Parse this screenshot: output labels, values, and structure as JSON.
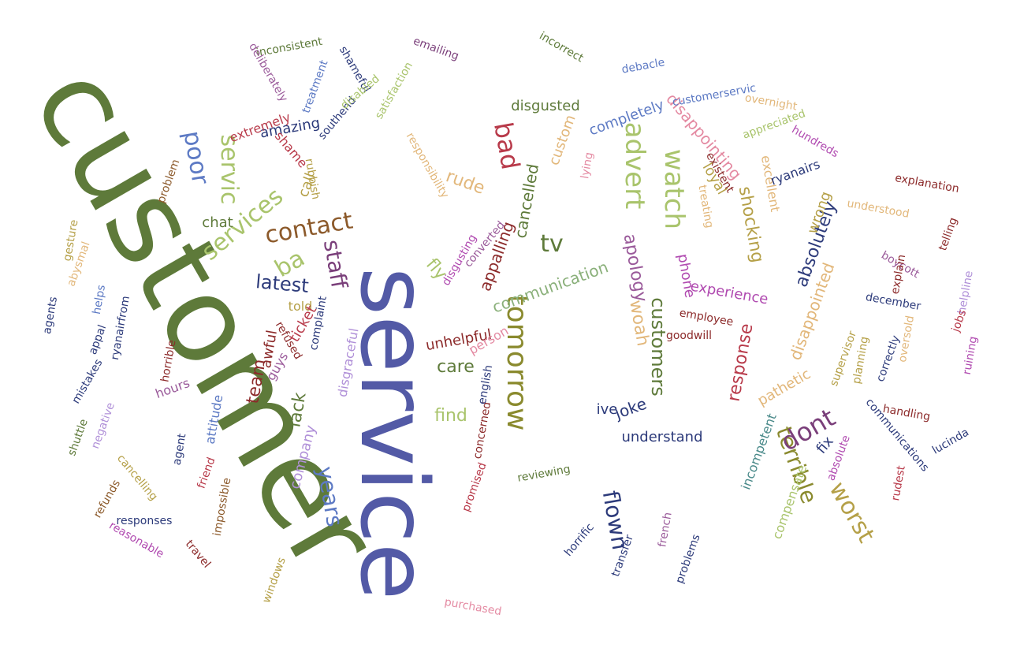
{
  "palette": {
    "green": "#5e7a3a",
    "indigo": "#535aa6",
    "olive": "#8a8a2e",
    "lime": "#a9c46c",
    "khaki": "#b5a048",
    "tan": "#e2b77a",
    "brown": "#8c5a2b",
    "maroon": "#8c2a2a",
    "crimson": "#b83a4a",
    "pink": "#d65a80",
    "rose": "#e48aa2",
    "magenta": "#b04ab0",
    "lavender": "#b090d8",
    "purple": "#7a3f7a",
    "plum": "#9a5a9a",
    "blue": "#5d7ac4",
    "navy": "#2c3a7a",
    "teal": "#4a8a8a",
    "sage": "#8ab07a"
  },
  "words": [
    {
      "text": "customer",
      "color": "green"
    },
    {
      "text": "service",
      "color": "indigo"
    },
    {
      "text": "terrible",
      "color": "olive"
    },
    {
      "text": "worst",
      "color": "khaki"
    },
    {
      "text": "tomorrow",
      "color": "olive"
    },
    {
      "text": "advert",
      "color": "lime"
    },
    {
      "text": "watch",
      "color": "lime"
    },
    {
      "text": "bad",
      "color": "crimson"
    },
    {
      "text": "staff",
      "color": "purple"
    },
    {
      "text": "contact",
      "color": "brown"
    },
    {
      "text": "services",
      "color": "lime"
    },
    {
      "text": "servic",
      "color": "lime"
    },
    {
      "text": "poor",
      "color": "blue"
    },
    {
      "text": "ba",
      "color": "lime"
    },
    {
      "text": "latest",
      "color": "navy"
    },
    {
      "text": "dont",
      "color": "purple"
    },
    {
      "text": "customers",
      "color": "green"
    },
    {
      "text": "flown",
      "color": "navy"
    },
    {
      "text": "years",
      "color": "blue"
    },
    {
      "text": "tv",
      "color": "green"
    },
    {
      "text": "rude",
      "color": "tan"
    },
    {
      "text": "appalling",
      "color": "maroon"
    },
    {
      "text": "apology",
      "color": "plum"
    },
    {
      "text": "shocking",
      "color": "khaki"
    },
    {
      "text": "woah",
      "color": "tan"
    },
    {
      "text": "response",
      "color": "crimson"
    },
    {
      "text": "absolutely",
      "color": "navy"
    },
    {
      "text": "disappointed",
      "color": "tan"
    },
    {
      "text": "find",
      "color": "lime"
    },
    {
      "text": "care",
      "color": "green"
    },
    {
      "text": "team",
      "color": "maroon"
    },
    {
      "text": "lack",
      "color": "green"
    },
    {
      "text": "company",
      "color": "lavender"
    },
    {
      "text": "fly",
      "color": "lime"
    },
    {
      "text": "communication",
      "color": "sage"
    },
    {
      "text": "joke",
      "color": "navy"
    },
    {
      "text": "understand",
      "color": "navy"
    },
    {
      "text": "phone",
      "color": "magenta"
    },
    {
      "text": "wrong",
      "color": "khaki"
    },
    {
      "text": "fix",
      "color": "navy"
    },
    {
      "text": "disappointing",
      "color": "rose"
    },
    {
      "text": "cancelled",
      "color": "green"
    },
    {
      "text": "completely",
      "color": "blue"
    },
    {
      "text": "amazing",
      "color": "navy"
    },
    {
      "text": "ive",
      "color": "navy"
    },
    {
      "text": "unhelpful",
      "color": "maroon"
    },
    {
      "text": "experience",
      "color": "magenta"
    },
    {
      "text": "disgusted",
      "color": "green"
    },
    {
      "text": "pathetic",
      "color": "tan"
    },
    {
      "text": "call",
      "color": "khaki"
    },
    {
      "text": "chat",
      "color": "green"
    },
    {
      "text": "told",
      "color": "khaki"
    },
    {
      "text": "ticket",
      "color": "crimson"
    },
    {
      "text": "awful",
      "color": "maroon"
    },
    {
      "text": "guys",
      "color": "plum"
    },
    {
      "text": "disgraceful",
      "color": "lavender"
    },
    {
      "text": "person",
      "color": "rose"
    },
    {
      "text": "custom",
      "color": "tan"
    },
    {
      "text": "loyal",
      "color": "khaki"
    },
    {
      "text": "excellent",
      "color": "tan"
    },
    {
      "text": "incompetent",
      "color": "teal"
    },
    {
      "text": "compensate",
      "color": "lime"
    },
    {
      "text": "communications",
      "color": "navy"
    },
    {
      "text": "extremely",
      "color": "crimson"
    },
    {
      "text": "shame",
      "color": "crimson"
    },
    {
      "text": "rubbish",
      "color": "khaki"
    },
    {
      "text": "problem",
      "color": "brown"
    },
    {
      "text": "treatment",
      "color": "blue"
    },
    {
      "text": "southend",
      "color": "navy"
    },
    {
      "text": "customerservic",
      "color": "blue"
    },
    {
      "text": "ryanairs",
      "color": "navy"
    },
    {
      "text": "explanation",
      "color": "maroon"
    },
    {
      "text": "understood",
      "color": "tan"
    },
    {
      "text": "employee",
      "color": "maroon"
    },
    {
      "text": "goodwill",
      "color": "maroon"
    },
    {
      "text": "complaint",
      "color": "navy"
    },
    {
      "text": "refused",
      "color": "maroon"
    },
    {
      "text": "hours",
      "color": "plum"
    },
    {
      "text": "attitude",
      "color": "blue"
    },
    {
      "text": "agent",
      "color": "navy"
    },
    {
      "text": "friend",
      "color": "crimson"
    },
    {
      "text": "impossible",
      "color": "brown"
    },
    {
      "text": "horrible",
      "color": "maroon"
    },
    {
      "text": "reviewing",
      "color": "green"
    },
    {
      "text": "promised",
      "color": "crimson"
    },
    {
      "text": "concerned",
      "color": "maroon"
    },
    {
      "text": "english",
      "color": "navy"
    },
    {
      "text": "responses",
      "color": "navy"
    },
    {
      "text": "reasonable",
      "color": "magenta"
    },
    {
      "text": "refunds",
      "color": "brown"
    },
    {
      "text": "cancelling",
      "color": "khaki"
    },
    {
      "text": "travel",
      "color": "maroon"
    },
    {
      "text": "windows",
      "color": "khaki"
    },
    {
      "text": "purchased",
      "color": "rose"
    },
    {
      "text": "horrific",
      "color": "navy"
    },
    {
      "text": "transfer",
      "color": "navy"
    },
    {
      "text": "problems",
      "color": "navy"
    },
    {
      "text": "french",
      "color": "plum"
    },
    {
      "text": "handling",
      "color": "maroon"
    },
    {
      "text": "lucinda",
      "color": "navy"
    },
    {
      "text": "absolute",
      "color": "magenta"
    },
    {
      "text": "rudest",
      "color": "crimson"
    },
    {
      "text": "supervisor",
      "color": "khaki"
    },
    {
      "text": "planning",
      "color": "khaki"
    },
    {
      "text": "correctly",
      "color": "navy"
    },
    {
      "text": "oversold",
      "color": "tan"
    },
    {
      "text": "ruining",
      "color": "magenta"
    },
    {
      "text": "helpline",
      "color": "lavender"
    },
    {
      "text": "jobs",
      "color": "crimson"
    },
    {
      "text": "december",
      "color": "navy"
    },
    {
      "text": "boycott",
      "color": "plum"
    },
    {
      "text": "explain",
      "color": "maroon"
    },
    {
      "text": "telling",
      "color": "maroon"
    },
    {
      "text": "inconsistent",
      "color": "green"
    },
    {
      "text": "emailing",
      "color": "purple"
    },
    {
      "text": "incorrect",
      "color": "green"
    },
    {
      "text": "debacle",
      "color": "blue"
    },
    {
      "text": "overnight",
      "color": "tan"
    },
    {
      "text": "appreciated",
      "color": "lime"
    },
    {
      "text": "hundreds",
      "color": "magenta"
    },
    {
      "text": "satisfaction",
      "color": "lime"
    },
    {
      "text": "responsibility",
      "color": "tan"
    },
    {
      "text": "disgusting",
      "color": "magenta"
    },
    {
      "text": "converted",
      "color": "plum"
    },
    {
      "text": "helps",
      "color": "blue"
    },
    {
      "text": "ryanairfrom",
      "color": "navy"
    },
    {
      "text": "mistakes",
      "color": "navy"
    },
    {
      "text": "negative",
      "color": "lavender"
    },
    {
      "text": "shuttle",
      "color": "green"
    },
    {
      "text": "abysmal",
      "color": "tan"
    },
    {
      "text": "agents",
      "color": "navy"
    },
    {
      "text": "gesture",
      "color": "khaki"
    },
    {
      "text": "deliberately",
      "color": "plum"
    },
    {
      "text": "shameful",
      "color": "navy"
    },
    {
      "text": "disabled",
      "color": "lime"
    },
    {
      "text": "appal",
      "color": "navy"
    },
    {
      "text": "lying",
      "color": "rose"
    },
    {
      "text": "existent",
      "color": "maroon"
    },
    {
      "text": "treating",
      "color": "tan"
    }
  ]
}
